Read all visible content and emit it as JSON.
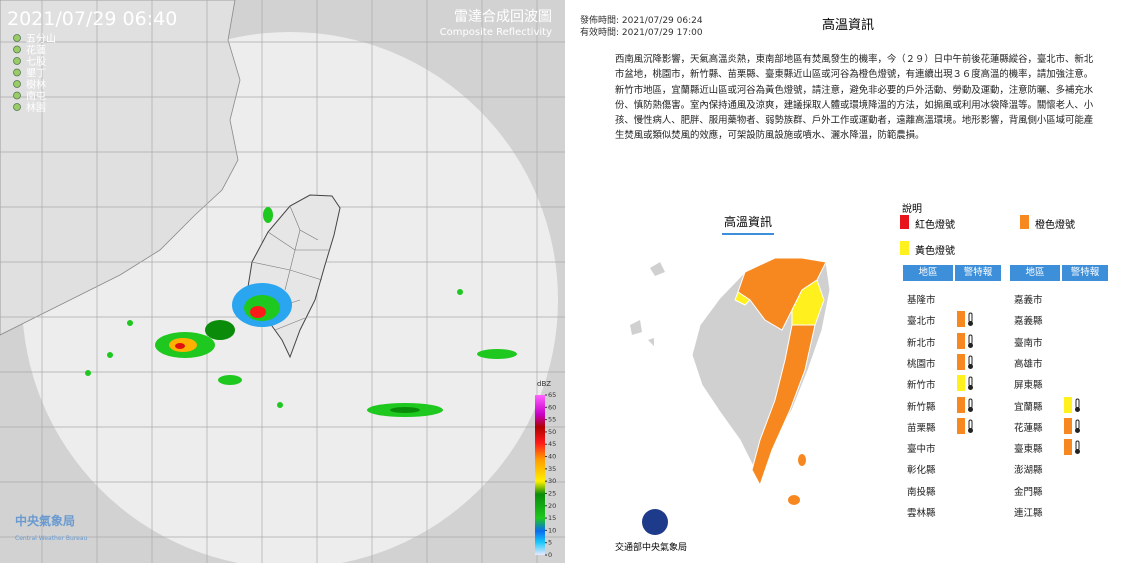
{
  "radar": {
    "timestamp": "2021/07/29 06:40",
    "title": "雷達合成回波圖",
    "subtitle": "Composite Reflectivity",
    "stations": [
      "五分山",
      "花蓮",
      "七股",
      "墾丁",
      "樹林",
      "南屯",
      "林園"
    ],
    "scale_unit": "dBZ",
    "scale_ticks": [
      65,
      60,
      55,
      50,
      45,
      40,
      35,
      30,
      25,
      20,
      15,
      10,
      5,
      0
    ],
    "agency": "中央氣象局",
    "agency_en": "Central Weather Bureau"
  },
  "notice": {
    "issued": "發佈時間: 2021/07/29 06:24",
    "valid": "有效時間: 2021/07/29 17:00",
    "title": "高溫資訊",
    "body": "西南風沉降影響，天氣高溫炎熱，東南部地區有焚風發生的機率，今（２９）日中午前後花蓮縣縱谷，臺北市、新北市盆地，桃園市，新竹縣、苗栗縣、臺東縣近山區或河谷為橙色燈號，有連續出現３６度高溫的機率，請加強注意。新竹市地區，宜蘭縣近山區或河谷為黃色燈號，請注意，避免非必要的戶外活動、勞動及運動，注意防曬、多補充水份、慎防熱傷害。室內保持通風及涼爽，建議採取人體或環境降溫的方法，如搧風或利用冰袋降溫等。關懷老人、小孩、慢性病人、肥胖、服用藥物者、弱勢族群、戶外工作或運動者，遠離高溫環境。地形影響，背風側小區域可能產生焚風或類似焚風的效應，可架設防風設施或噴水、灑水降溫，防範農損。",
    "map_title": "高溫資訊",
    "legend_title": "說明",
    "legend": [
      {
        "name": "紅色燈號",
        "color": "#e8141b"
      },
      {
        "name": "橙色燈號",
        "color": "#f7881f"
      },
      {
        "name": "黃色燈號",
        "color": "#fff01e"
      }
    ],
    "table_headers": [
      "地區",
      "警特報"
    ],
    "regions": [
      {
        "name": "基隆市",
        "level": null
      },
      {
        "name": "臺北市",
        "level": 1
      },
      {
        "name": "新北市",
        "level": 1
      },
      {
        "name": "桃園市",
        "level": 1
      },
      {
        "name": "新竹市",
        "level": 2
      },
      {
        "name": "新竹縣",
        "level": 1
      },
      {
        "name": "苗栗縣",
        "level": 1
      },
      {
        "name": "臺中市",
        "level": null
      },
      {
        "name": "彰化縣",
        "level": null
      },
      {
        "name": "南投縣",
        "level": null
      },
      {
        "name": "雲林縣",
        "level": null
      },
      {
        "name": "嘉義市",
        "level": null
      },
      {
        "name": "嘉義縣",
        "level": null
      },
      {
        "name": "臺南市",
        "level": null
      },
      {
        "name": "高雄市",
        "level": null
      },
      {
        "name": "屏東縣",
        "level": null
      },
      {
        "name": "宜蘭縣",
        "level": 2
      },
      {
        "name": "花蓮縣",
        "level": 1
      },
      {
        "name": "臺東縣",
        "level": 1
      },
      {
        "name": "澎湖縣",
        "level": null
      },
      {
        "name": "金門縣",
        "level": null
      },
      {
        "name": "連江縣",
        "level": null
      }
    ],
    "footer": "交通部中央氣象局"
  }
}
